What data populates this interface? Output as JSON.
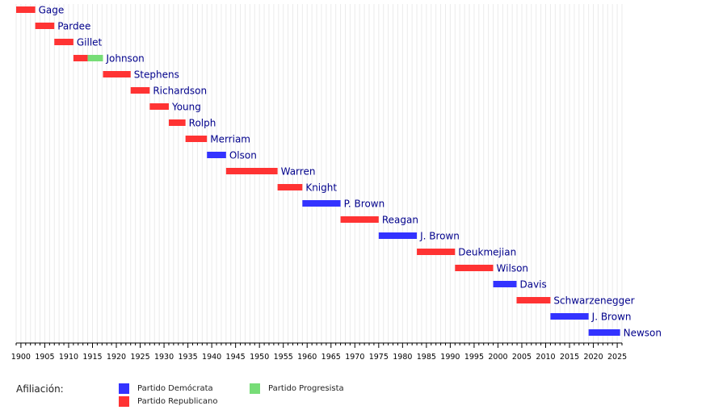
{
  "chart_data": {
    "type": "gantt",
    "title": "",
    "xlabel": "",
    "ylabel": "",
    "xlim": [
      1899,
      2026
    ],
    "x_ticks": [
      1900,
      1905,
      1910,
      1915,
      1920,
      1925,
      1930,
      1935,
      1940,
      1945,
      1950,
      1955,
      1960,
      1965,
      1970,
      1975,
      1980,
      1985,
      1990,
      1995,
      2000,
      2005,
      2010,
      2015,
      2020,
      2025
    ],
    "grid": "vertical yearly lines",
    "colors": {
      "Democratic": "#3333ff",
      "Republican": "#ff3333",
      "Progressive": "#77dd77",
      "label": "#00008b"
    },
    "governors": [
      {
        "name": "Gage",
        "segments": [
          {
            "start": 1899,
            "end": 1903,
            "party": "Republican"
          }
        ]
      },
      {
        "name": "Pardee",
        "segments": [
          {
            "start": 1903,
            "end": 1907,
            "party": "Republican"
          }
        ]
      },
      {
        "name": "Gillet",
        "segments": [
          {
            "start": 1907,
            "end": 1911,
            "party": "Republican"
          }
        ]
      },
      {
        "name": "Johnson",
        "segments": [
          {
            "start": 1911,
            "end": 1914,
            "party": "Republican"
          },
          {
            "start": 1914,
            "end": 1917.2,
            "party": "Progressive"
          }
        ]
      },
      {
        "name": "Stephens",
        "segments": [
          {
            "start": 1917.2,
            "end": 1923,
            "party": "Republican"
          }
        ]
      },
      {
        "name": "Richardson",
        "segments": [
          {
            "start": 1923,
            "end": 1927,
            "party": "Republican"
          }
        ]
      },
      {
        "name": "Young",
        "segments": [
          {
            "start": 1927,
            "end": 1931,
            "party": "Republican"
          }
        ]
      },
      {
        "name": "Rolph",
        "segments": [
          {
            "start": 1931,
            "end": 1934.5,
            "party": "Republican"
          }
        ]
      },
      {
        "name": "Merriam",
        "segments": [
          {
            "start": 1934.5,
            "end": 1939,
            "party": "Republican"
          }
        ]
      },
      {
        "name": "Olson",
        "segments": [
          {
            "start": 1939,
            "end": 1943,
            "party": "Democratic"
          }
        ]
      },
      {
        "name": "Warren",
        "segments": [
          {
            "start": 1943,
            "end": 1953.8,
            "party": "Republican"
          }
        ]
      },
      {
        "name": "Knight",
        "segments": [
          {
            "start": 1953.8,
            "end": 1959,
            "party": "Republican"
          }
        ]
      },
      {
        "name": "P. Brown",
        "segments": [
          {
            "start": 1959,
            "end": 1967,
            "party": "Democratic"
          }
        ]
      },
      {
        "name": "Reagan",
        "segments": [
          {
            "start": 1967,
            "end": 1975,
            "party": "Republican"
          }
        ]
      },
      {
        "name": "J. Brown",
        "segments": [
          {
            "start": 1975,
            "end": 1983,
            "party": "Democratic"
          }
        ]
      },
      {
        "name": "Deukmejian",
        "segments": [
          {
            "start": 1983,
            "end": 1991,
            "party": "Republican"
          }
        ]
      },
      {
        "name": "Wilson",
        "segments": [
          {
            "start": 1991,
            "end": 1999,
            "party": "Republican"
          }
        ]
      },
      {
        "name": "Davis",
        "segments": [
          {
            "start": 1999,
            "end": 2003.9,
            "party": "Democratic"
          }
        ]
      },
      {
        "name": "Schwarzenegger",
        "segments": [
          {
            "start": 2003.9,
            "end": 2011,
            "party": "Republican"
          }
        ]
      },
      {
        "name": "J. Brown",
        "segments": [
          {
            "start": 2011,
            "end": 2019,
            "party": "Democratic"
          }
        ]
      },
      {
        "name": "Newson",
        "segments": [
          {
            "start": 2019,
            "end": 2025.6,
            "party": "Democratic"
          }
        ]
      }
    ]
  },
  "legend": {
    "title": "Afiliación:",
    "items": [
      {
        "label": "Partido Demócrata",
        "party": "Democratic"
      },
      {
        "label": "Partido Republicano",
        "party": "Republican"
      },
      {
        "label": "Partido Progresista",
        "party": "Progressive"
      }
    ]
  }
}
